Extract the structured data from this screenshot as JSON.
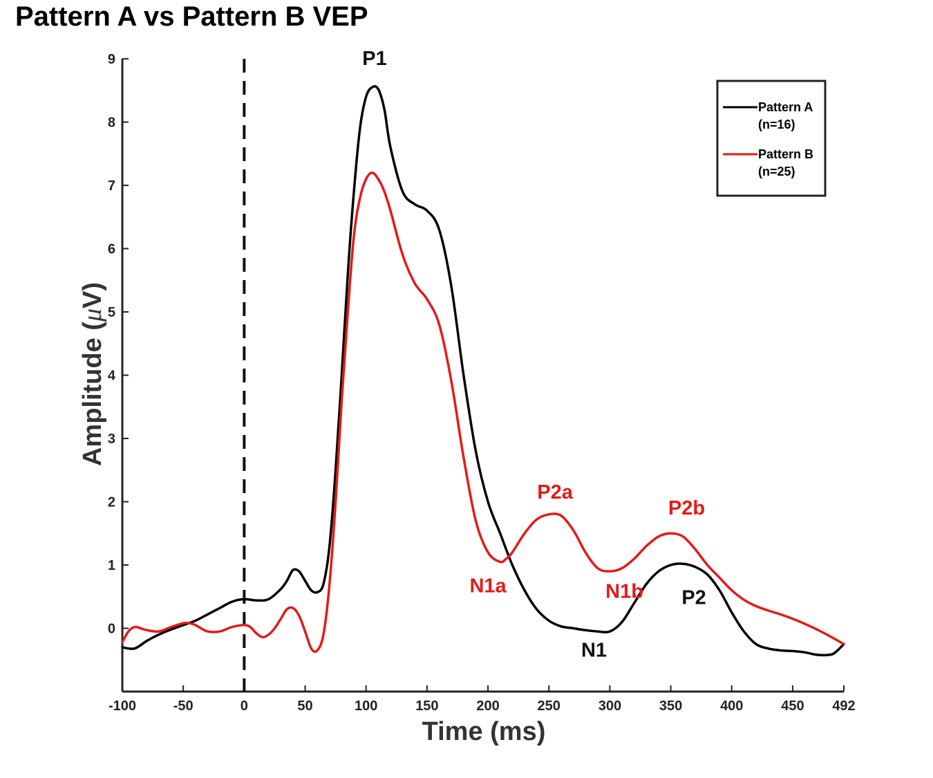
{
  "chart_data": {
    "type": "line",
    "title": "Pattern A vs Pattern B VEP",
    "xlabel": "Time (ms)",
    "ylabel": "Amplitude (μV)",
    "ylabel_parts": {
      "main": "Amplitude (",
      "symbol": "μ",
      "unit": "V)"
    },
    "xlim": [
      -100,
      492
    ],
    "ylim": [
      -1,
      9
    ],
    "xticks": [
      -100,
      -50,
      0,
      50,
      100,
      150,
      200,
      250,
      300,
      350,
      400,
      450,
      492
    ],
    "xtick_labels": [
      "-100",
      "-50",
      "0",
      "50",
      "100",
      "150",
      "200",
      "250",
      "300",
      "350",
      "400",
      "450",
      "492"
    ],
    "yticks": [
      0,
      1,
      2,
      3,
      4,
      5,
      6,
      7,
      8,
      9
    ],
    "ytick_labels": [
      "0",
      "1",
      "2",
      "3",
      "4",
      "5",
      "6",
      "7",
      "8",
      "9"
    ],
    "stimulus_onset_line": 0,
    "series": [
      {
        "name": "Pattern A",
        "name_line2": "(n=16)",
        "color": "#000000",
        "x": [
          -100,
          -90,
          -80,
          -70,
          -60,
          -50,
          -40,
          -30,
          -20,
          -10,
          0,
          10,
          20,
          30,
          35,
          40,
          45,
          50,
          55,
          60,
          65,
          70,
          75,
          80,
          85,
          90,
          95,
          100,
          105,
          110,
          115,
          120,
          130,
          140,
          150,
          160,
          170,
          180,
          190,
          200,
          210,
          220,
          230,
          240,
          250,
          260,
          270,
          280,
          290,
          300,
          310,
          320,
          330,
          340,
          350,
          360,
          370,
          380,
          390,
          400,
          410,
          420,
          430,
          440,
          450,
          460,
          470,
          480,
          485,
          492
        ],
        "values": [
          -0.3,
          -0.32,
          -0.2,
          -0.1,
          -0.02,
          0.05,
          0.12,
          0.22,
          0.32,
          0.42,
          0.46,
          0.44,
          0.46,
          0.62,
          0.75,
          0.92,
          0.9,
          0.75,
          0.6,
          0.57,
          0.7,
          1.3,
          2.5,
          4.0,
          5.6,
          6.9,
          7.9,
          8.4,
          8.55,
          8.52,
          8.2,
          7.6,
          6.9,
          6.7,
          6.6,
          6.3,
          5.4,
          4.0,
          2.8,
          2.0,
          1.5,
          1.0,
          0.6,
          0.3,
          0.12,
          0.03,
          0.0,
          -0.03,
          -0.05,
          -0.05,
          0.1,
          0.4,
          0.7,
          0.9,
          1.0,
          1.02,
          0.97,
          0.85,
          0.6,
          0.25,
          -0.05,
          -0.25,
          -0.32,
          -0.35,
          -0.36,
          -0.38,
          -0.42,
          -0.42,
          -0.38,
          -0.25
        ]
      },
      {
        "name": "Pattern B",
        "name_line2": "(n=25)",
        "color": "#e31a1a",
        "x": [
          -100,
          -95,
          -90,
          -85,
          -80,
          -70,
          -60,
          -50,
          -45,
          -40,
          -30,
          -20,
          -10,
          0,
          5,
          10,
          15,
          20,
          25,
          30,
          35,
          40,
          45,
          50,
          55,
          60,
          65,
          70,
          75,
          80,
          85,
          90,
          95,
          100,
          105,
          110,
          115,
          120,
          130,
          140,
          150,
          160,
          170,
          180,
          190,
          200,
          210,
          215,
          220,
          230,
          240,
          250,
          260,
          270,
          280,
          290,
          300,
          310,
          320,
          330,
          340,
          350,
          360,
          370,
          380,
          390,
          400,
          410,
          420,
          430,
          440,
          450,
          460,
          470,
          480,
          492
        ],
        "values": [
          -0.22,
          -0.05,
          0.02,
          0.0,
          -0.03,
          -0.05,
          0.02,
          0.08,
          0.08,
          0.05,
          -0.05,
          -0.05,
          0.02,
          0.05,
          0.02,
          -0.08,
          -0.14,
          -0.1,
          0.0,
          0.15,
          0.3,
          0.32,
          0.2,
          -0.05,
          -0.32,
          -0.35,
          -0.1,
          0.7,
          2.0,
          3.6,
          5.0,
          6.2,
          6.8,
          7.1,
          7.2,
          7.1,
          6.9,
          6.6,
          5.9,
          5.45,
          5.2,
          4.8,
          3.9,
          2.7,
          1.7,
          1.2,
          1.05,
          1.1,
          1.2,
          1.5,
          1.72,
          1.8,
          1.78,
          1.55,
          1.2,
          0.95,
          0.9,
          0.95,
          1.1,
          1.3,
          1.45,
          1.5,
          1.45,
          1.25,
          1.0,
          0.8,
          0.6,
          0.45,
          0.35,
          0.28,
          0.22,
          0.15,
          0.07,
          -0.02,
          -0.12,
          -0.25
        ]
      }
    ],
    "annotations": [
      {
        "text": "P1",
        "x": 107,
        "y": 8.9,
        "color": "#111111"
      },
      {
        "text": "N1",
        "x": 287,
        "y": -0.45,
        "color": "#111111"
      },
      {
        "text": "P2",
        "x": 369,
        "y": 0.38,
        "color": "#111111"
      },
      {
        "text": "N1a",
        "x": 200,
        "y": 0.57,
        "color": "#e31a1a"
      },
      {
        "text": "P2a",
        "x": 255,
        "y": 2.05,
        "color": "#e31a1a"
      },
      {
        "text": "N1b",
        "x": 312,
        "y": 0.48,
        "color": "#e31a1a"
      },
      {
        "text": "P2b",
        "x": 363,
        "y": 1.8,
        "color": "#e31a1a"
      }
    ],
    "legend": {
      "position": "top-right"
    }
  }
}
